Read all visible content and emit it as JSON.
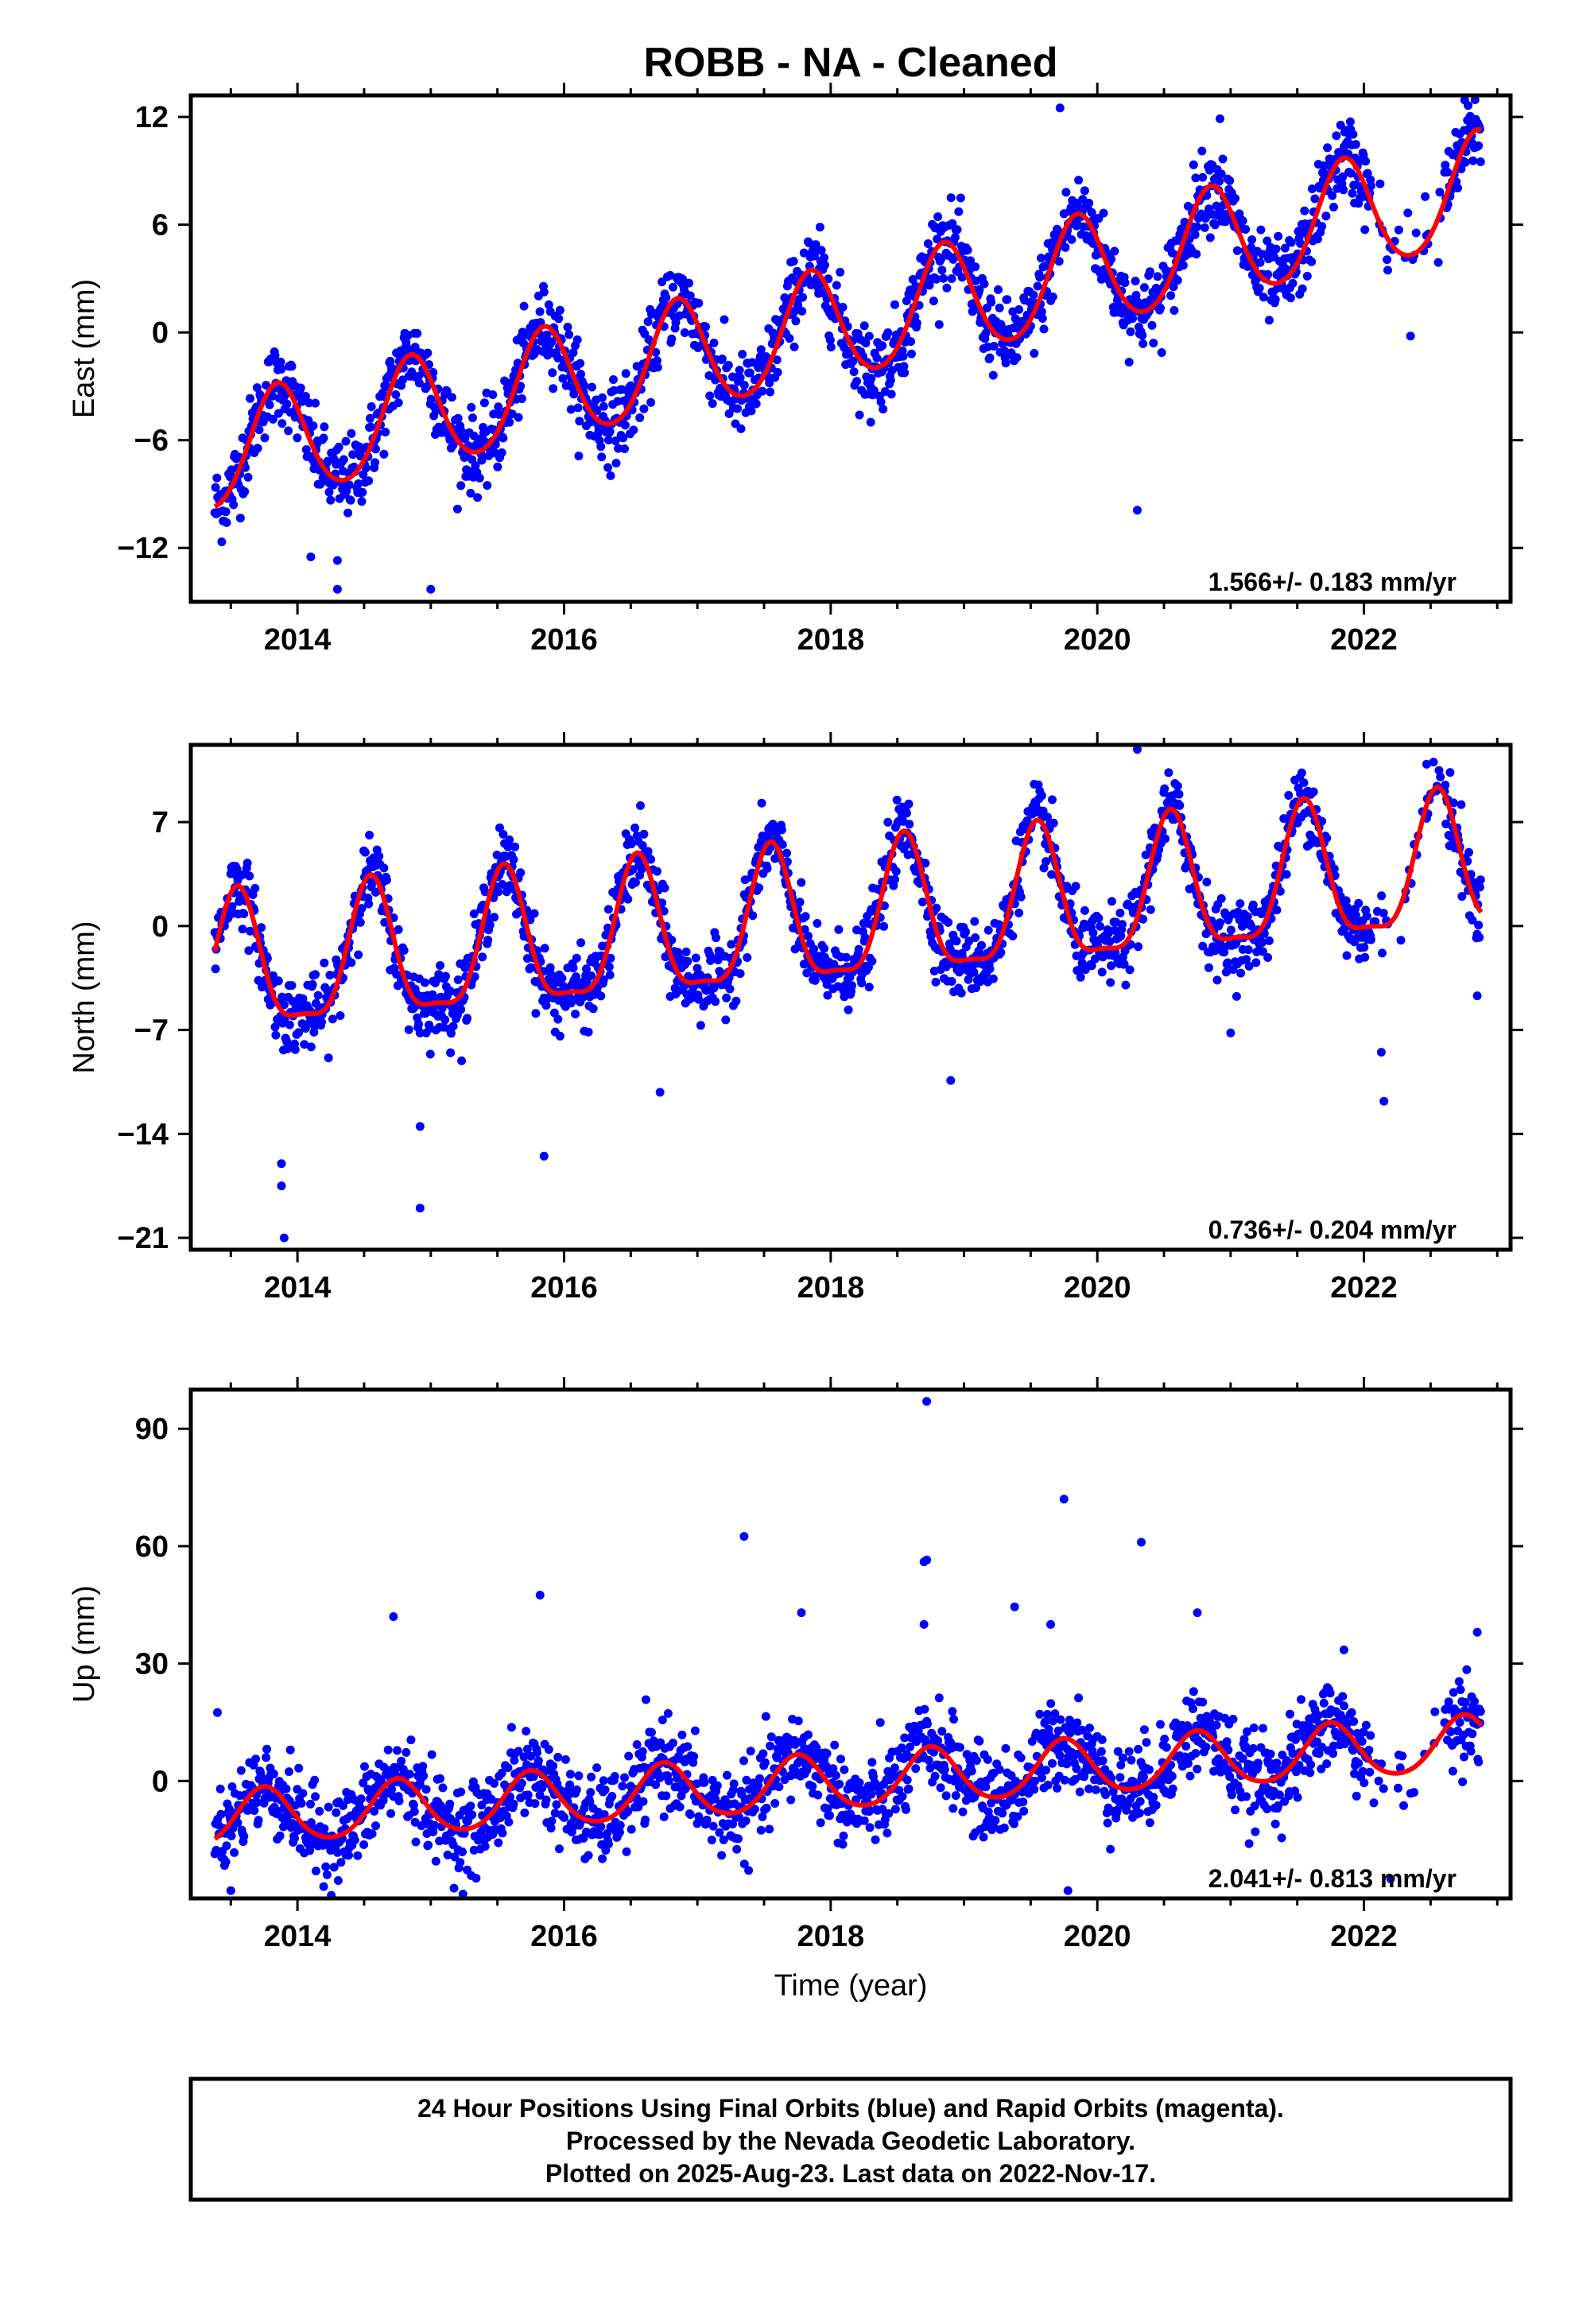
{
  "title": "ROBB  - NA - Cleaned",
  "chart_data": [
    {
      "type": "scatter",
      "component": "east",
      "ylabel": "East (mm)",
      "xlabel": "",
      "xlim": [
        2013.2,
        2023.1
      ],
      "ylim": [
        -15,
        13.2
      ],
      "xticks": [
        "2014",
        "2016",
        "2018",
        "2020",
        "2022"
      ],
      "yticks": [
        "12",
        "6",
        "0",
        "−6",
        "−12"
      ],
      "yticks_values": [
        12,
        6,
        0,
        -6,
        -12
      ],
      "rate_text": "1.566+/- 0.183 mm/yr",
      "model": {
        "rate": 1.566,
        "offset_at_2018": 0.3,
        "annual_amp": 3.1,
        "annual_phase_peak": 0.85,
        "semi_amp": 0.3
      },
      "scatter_sigma": 1.1,
      "outliers": [
        [
          2014.3,
          -12.7
        ],
        [
          2014.1,
          -12.5
        ],
        [
          2014.3,
          -14.3
        ],
        [
          2015.0,
          -14.3
        ],
        [
          2020.3,
          -9.9
        ],
        [
          2019.72,
          12.5
        ],
        [
          2020.92,
          11.9
        ],
        [
          2018.3,
          -5.0
        ],
        [
          2021.9,
          11.3
        ],
        [
          2022.35,
          -0.2
        ]
      ],
      "series": [
        {
          "name": "24 Hour Positions Using Final Orbits (blue)",
          "color": "#0000ff"
        },
        {
          "name": "model",
          "color": "#ff0000"
        }
      ]
    },
    {
      "type": "scatter",
      "component": "north",
      "ylabel": "North (mm)",
      "xlabel": "",
      "xlim": [
        2013.2,
        2023.1
      ],
      "ylim": [
        -21.8,
        12.2
      ],
      "xticks": [
        "2014",
        "2016",
        "2018",
        "2020",
        "2022"
      ],
      "yticks": [
        "7",
        "0",
        "−7",
        "−14",
        "−21"
      ],
      "yticks_values": [
        7,
        0,
        -7,
        -14,
        -21
      ],
      "rate_text": "0.736+/- 0.204 mm/yr",
      "model": {
        "rate": 0.736,
        "offset_at_2018": 0.2,
        "annual_amp": 4.5,
        "annual_phase_peak": 0.55,
        "semi_amp": 1.3
      },
      "scatter_sigma": 1.2,
      "outliers": [
        [
          2013.9,
          -21
        ],
        [
          2013.88,
          -16
        ],
        [
          2013.88,
          -17.5
        ],
        [
          2014.92,
          -19
        ],
        [
          2014.92,
          -13.5
        ],
        [
          2015.85,
          -15.5
        ],
        [
          2016.72,
          -11.2
        ],
        [
          2018.9,
          -10.4
        ],
        [
          2021.0,
          -7.2
        ],
        [
          2022.13,
          -8.5
        ],
        [
          2022.15,
          -11.8
        ],
        [
          2020.3,
          11.9
        ],
        [
          2022.47,
          10.9
        ],
        [
          2022.85,
          -4.7
        ]
      ],
      "series": [
        {
          "name": "24 Hour Positions Using Final Orbits (blue)",
          "color": "#0000ff"
        },
        {
          "name": "model",
          "color": "#ff0000"
        }
      ]
    },
    {
      "type": "scatter",
      "component": "up",
      "ylabel": "Up (mm)",
      "xlabel": "Time (year)",
      "xlim": [
        2013.2,
        2023.1
      ],
      "ylim": [
        -30,
        100
      ],
      "xticks": [
        "2014",
        "2016",
        "2018",
        "2020",
        "2022"
      ],
      "yticks": [
        "90",
        "60",
        "30",
        "0"
      ],
      "yticks_values": [
        90,
        60,
        30,
        0
      ],
      "rate_text": "2.041+/- 0.813 mm/yr",
      "model": {
        "rate": 2.041,
        "offset_at_2018": -0.5,
        "annual_amp": 7.0,
        "annual_phase_peak": 0.75,
        "semi_amp": 0.8
      },
      "scatter_sigma": 5.5,
      "outliers": [
        [
          2018.72,
          97
        ],
        [
          2019.75,
          72
        ],
        [
          2020.33,
          61
        ],
        [
          2017.35,
          62.5
        ],
        [
          2018.7,
          56
        ],
        [
          2018.72,
          56.5
        ],
        [
          2015.82,
          47.5
        ],
        [
          2014.72,
          42
        ],
        [
          2019.38,
          44.5
        ],
        [
          2019.65,
          40
        ],
        [
          2020.75,
          43
        ],
        [
          2017.78,
          43
        ],
        [
          2018.7,
          40
        ],
        [
          2022.85,
          38
        ],
        [
          2019.78,
          -28
        ],
        [
          2013.5,
          -28
        ],
        [
          2013.4,
          17.5
        ],
        [
          2021.85,
          33.5
        ],
        [
          2022.2,
          -25
        ]
      ],
      "series": [
        {
          "name": "24 Hour Positions Using Final Orbits (blue)",
          "color": "#0000ff"
        },
        {
          "name": "model",
          "color": "#ff0000"
        }
      ]
    }
  ],
  "footer": {
    "line1": "24 Hour Positions Using Final Orbits (blue) and Rapid Orbits (magenta).",
    "line2": "Processed by the Nevada Geodetic Laboratory.",
    "line3": "Plotted on 2025-Aug-23. Last data on 2022-Nov-17."
  }
}
